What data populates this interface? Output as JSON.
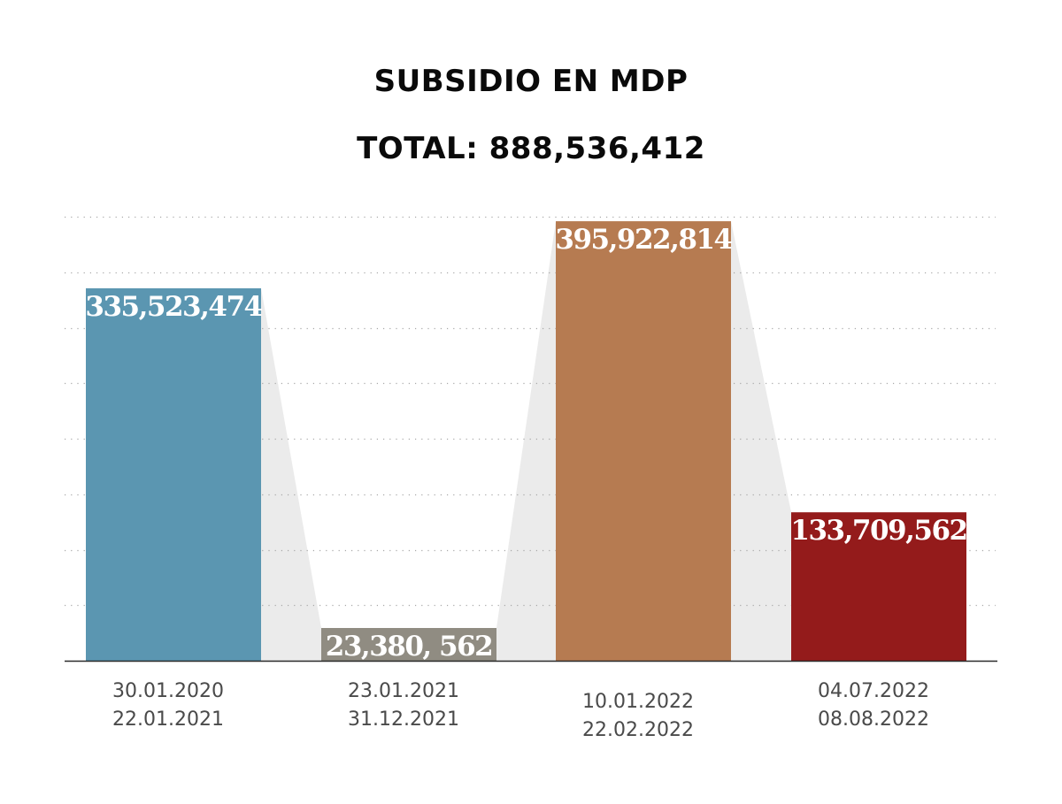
{
  "chart_data": {
    "type": "bar",
    "title": "SUBSIDIO EN MDP",
    "subtitle": "TOTAL: 888,536,412",
    "xlabel": "",
    "ylabel": "",
    "ylim": [
      0,
      400000000
    ],
    "grid": true,
    "grid_step": 50000000,
    "categories": [
      [
        "30.01.2020",
        "22.01.2021"
      ],
      [
        "23.01.2021",
        "31.12.2021"
      ],
      [
        "10.01.2022",
        "22.02.2022"
      ],
      [
        "04.07.2022",
        "08.08.2022"
      ]
    ],
    "values": [
      335523474,
      23380562,
      395922814,
      133709562
    ],
    "data_labels": [
      "335,523,474",
      "23,380, 562",
      "395,922,814",
      "133,709,562"
    ],
    "colors": [
      "#5b96b1",
      "#908c82",
      "#b67b51",
      "#941b1b"
    ],
    "connector_color": "#ebebeb"
  }
}
